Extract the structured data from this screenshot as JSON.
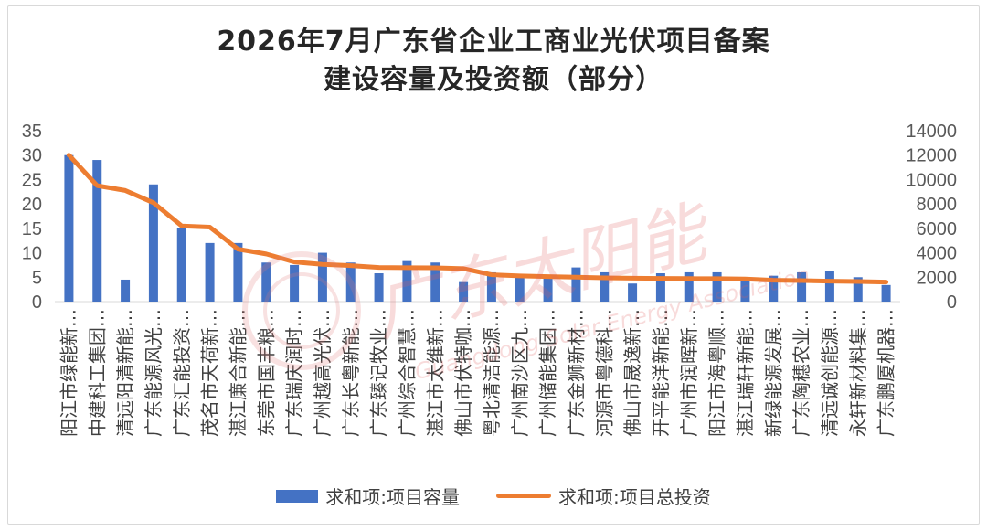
{
  "chart_data": {
    "type": "bar",
    "title_line1": "2026年7月广东省企业工商业光伏项目备案",
    "title_line2": "建设容量及投资额（部分）",
    "categories": [
      "阳江市绿能新…",
      "中建科工集团…",
      "清远阳清新能…",
      "广东能源风光…",
      "广东汇能投资…",
      "茂名市天荷新…",
      "湛江廉合新能…",
      "东莞市国丰粮…",
      "广东瑞庆润时…",
      "广州越高光伏…",
      "广东长粤新能…",
      "广东臻记牧业…",
      "广州综合智慧…",
      "湛江市太维新…",
      "佛山市伏特咖…",
      "粤北清洁能源…",
      "广州南沙区九…",
      "广州储能集团…",
      "广东金狮新材…",
      "河源市粤德科…",
      "佛山市晟逸新…",
      "开平能洋新能…",
      "广州市润晖新…",
      "阳江市海粤顺…",
      "湛江瑞轩新能…",
      "新绿能源发展…",
      "广东陶穗农业…",
      "清远诚创能源…",
      "永轩新材料集…",
      "广东鹏厦机器…"
    ],
    "series": [
      {
        "name": "求和项:项目容量",
        "type": "bar",
        "axis": "left",
        "color": "#4472c4",
        "values": [
          30,
          29,
          4.5,
          24,
          15,
          12,
          12,
          8,
          7.5,
          10,
          8,
          5.8,
          8.3,
          8,
          4,
          6,
          5,
          5.2,
          7,
          6,
          3.7,
          5.8,
          6,
          6,
          4.5,
          5.3,
          6,
          6.3,
          5,
          3.4
        ]
      },
      {
        "name": "求和项:项目总投资",
        "type": "line",
        "axis": "right",
        "color": "#ed7d31",
        "values": [
          12000,
          9500,
          9100,
          8100,
          6200,
          6100,
          4300,
          3900,
          3250,
          3050,
          2950,
          2800,
          2780,
          2770,
          2700,
          2200,
          2100,
          2050,
          2000,
          1950,
          1920,
          1900,
          1890,
          1880,
          1850,
          1750,
          1720,
          1680,
          1650,
          1600
        ]
      }
    ],
    "y_left": {
      "min": 0,
      "max": 35,
      "ticks": [
        "0",
        "5",
        "10",
        "15",
        "20",
        "25",
        "30",
        "35"
      ]
    },
    "y_right": {
      "min": 0,
      "max": 14000,
      "ticks": [
        "0",
        "2000",
        "4000",
        "6000",
        "8000",
        "10000",
        "12000",
        "14000"
      ]
    },
    "grid": false,
    "legend_position": "bottom"
  },
  "watermark": {
    "cn": "广东太阳能",
    "en": "Guangdong Solar Energy Association"
  }
}
